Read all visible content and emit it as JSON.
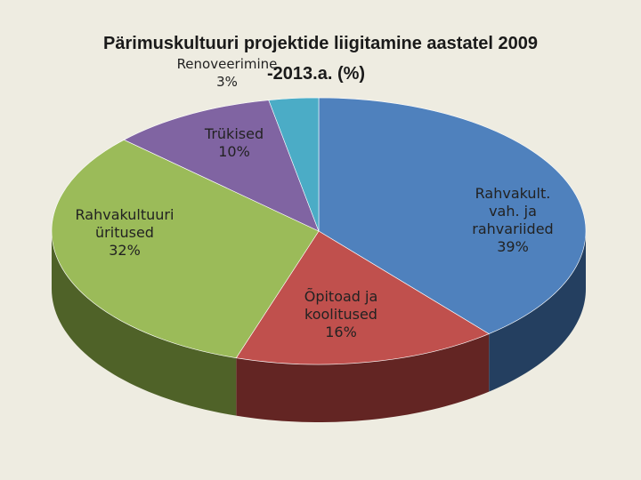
{
  "chart_data": {
    "type": "pie",
    "title_line1": "Pärimuskultuuri projektide liigitamine aastatel 2009",
    "title_line2": "-2013.a. (%)",
    "slices": [
      {
        "label": "Rahvakult. vah. ja rahvariided",
        "value": 39,
        "display": "39%",
        "color": "#4f81bd",
        "side": "#243f60"
      },
      {
        "label": "Õpitoad ja koolitused",
        "value": 16,
        "display": "16%",
        "color": "#c0504d",
        "side": "#632523"
      },
      {
        "label": "Rahvakultuuri üritused",
        "value": 32,
        "display": "32%",
        "color": "#9bbb59",
        "side": "#4f6228"
      },
      {
        "label": "Trükised",
        "value": 10,
        "display": "10%",
        "color": "#8064a2",
        "side": "#3f3151"
      },
      {
        "label": "Renoveerimine",
        "value": 3,
        "display": "3%",
        "color": "#4bacc6",
        "side": "#215968"
      }
    ]
  },
  "labels": {
    "l0": "Rahvakult.\nvah. ja\nrahvariided\n39%",
    "l1": "Õpitoad ja\nkoolitused\n16%",
    "l2": "Rahvakultuuri\nüritused\n32%",
    "l3": "Trükised\n10%",
    "l4": "Renoveerimine\n3%"
  }
}
